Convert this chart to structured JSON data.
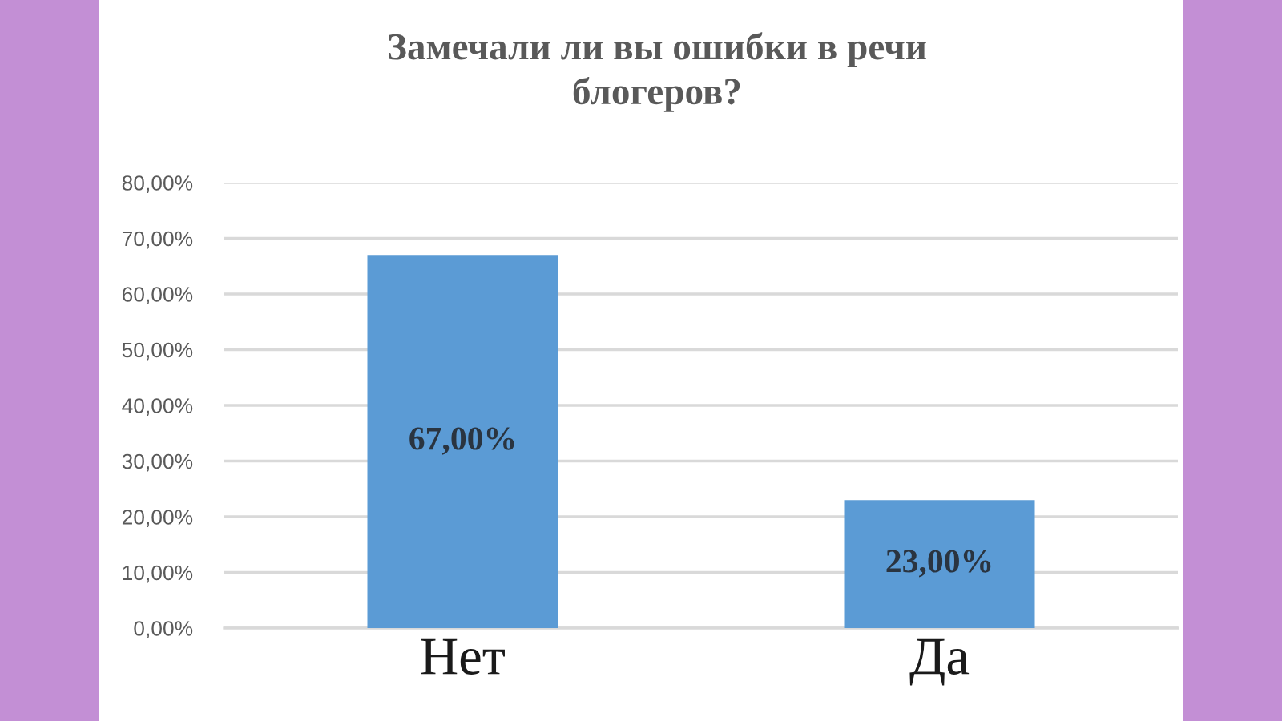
{
  "chart_data": {
    "type": "bar",
    "title": "Замечали ли вы ошибки в речи\nблогеров?",
    "categories": [
      "Нет",
      "Да"
    ],
    "values": [
      67,
      23
    ],
    "value_labels": [
      "67,00%",
      "23,00%"
    ],
    "color": "#5b9bd5",
    "ylim": [
      0,
      80
    ],
    "yticks": [
      {
        "value": 0,
        "label": "0,00%"
      },
      {
        "value": 10,
        "label": "10,00%"
      },
      {
        "value": 20,
        "label": "20,00%"
      },
      {
        "value": 30,
        "label": "30,00%"
      },
      {
        "value": 40,
        "label": "40,00%"
      },
      {
        "value": 50,
        "label": "50,00%"
      },
      {
        "value": 60,
        "label": "60,00%"
      },
      {
        "value": 70,
        "label": "70,00%"
      },
      {
        "value": 80,
        "label": "80,00%"
      }
    ],
    "grid": "y",
    "legend": false
  }
}
